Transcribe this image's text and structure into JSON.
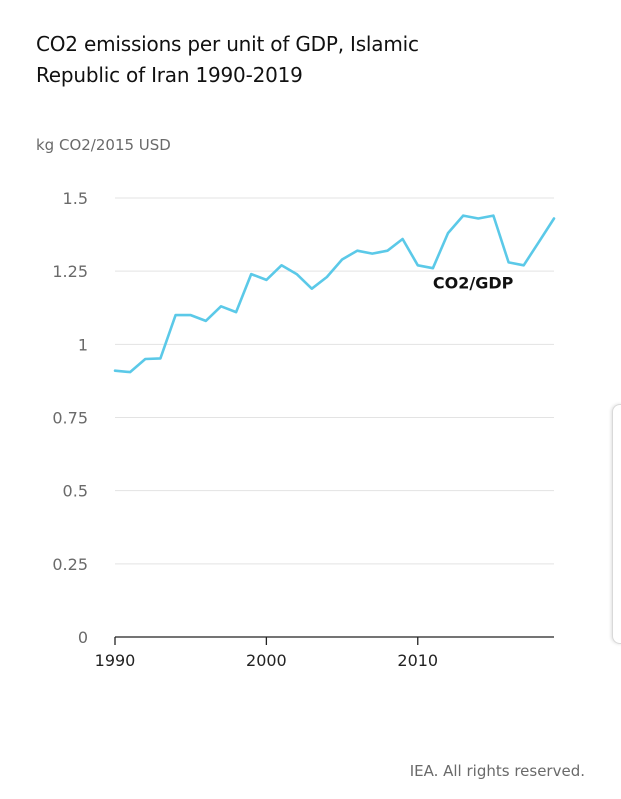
{
  "title": "CO2 emissions per unit of GDP, Islamic Republic of Iran 1990-2019",
  "unit_label": "kg CO2/2015 USD",
  "source": "IEA. All rights reserved.",
  "colors": {
    "line": "#5bc9e8",
    "grid": "#e3e3e3",
    "axis": "#222222",
    "tick_text": "#6a6a6a"
  },
  "chart_data": {
    "type": "line",
    "title": "CO2 emissions per unit of GDP, Islamic Republic of Iran 1990-2019",
    "ylabel": "kg CO2/2015 USD",
    "xlabel": "",
    "ylim": [
      0,
      1.5
    ],
    "xlim": [
      1990,
      2019
    ],
    "yticks": [
      0,
      0.25,
      0.5,
      0.75,
      1,
      1.25,
      1.5
    ],
    "ytick_labels": [
      "0",
      "0.25",
      "0.5",
      "0.75",
      "1",
      "1.25",
      "1.5"
    ],
    "xticks": [
      1990,
      2000,
      2010
    ],
    "xtick_labels": [
      "1990",
      "2000",
      "2010"
    ],
    "grid": "horizontal",
    "series": [
      {
        "name": "CO2/GDP",
        "x": [
          1990,
          1991,
          1992,
          1993,
          1994,
          1995,
          1996,
          1997,
          1998,
          1999,
          2000,
          2001,
          2002,
          2003,
          2004,
          2005,
          2006,
          2007,
          2008,
          2009,
          2010,
          2011,
          2012,
          2013,
          2014,
          2015,
          2016,
          2017,
          2018,
          2019
        ],
        "values": [
          0.91,
          0.905,
          0.95,
          0.952,
          1.1,
          1.1,
          1.08,
          1.13,
          1.11,
          1.24,
          1.22,
          1.27,
          1.24,
          1.19,
          1.23,
          1.29,
          1.32,
          1.31,
          1.32,
          1.36,
          1.27,
          1.26,
          1.38,
          1.44,
          1.43,
          1.44,
          1.28,
          1.27,
          1.35,
          1.43
        ]
      }
    ]
  }
}
